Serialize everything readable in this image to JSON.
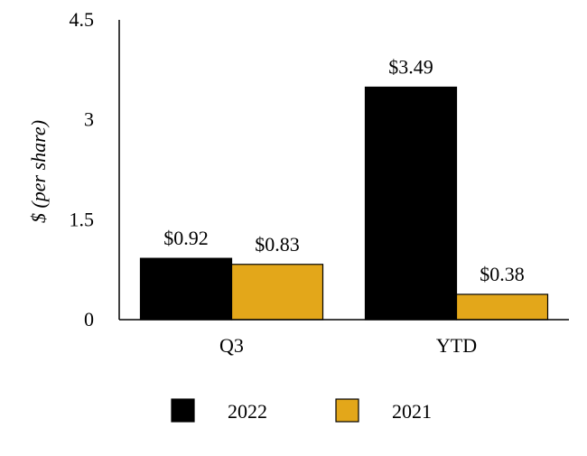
{
  "chart_data": {
    "type": "bar",
    "title": "",
    "xlabel": "",
    "ylabel": "$ (per share)",
    "ylim": [
      0,
      4.5
    ],
    "yticks": [
      0,
      1.5,
      3,
      4.5
    ],
    "ytick_labels": [
      "0",
      "1.5",
      "3",
      "4.5"
    ],
    "grid": false,
    "legend_position": "bottom",
    "categories": [
      "Q3",
      "YTD"
    ],
    "series": [
      {
        "name": "2022",
        "color": "#000000",
        "values": [
          0.92,
          3.49
        ],
        "labels": [
          "$0.92",
          "$3.49"
        ]
      },
      {
        "name": "2021",
        "color": "#E3A71A",
        "values": [
          0.83,
          0.38
        ],
        "labels": [
          "$0.83",
          "$0.38"
        ]
      }
    ]
  }
}
